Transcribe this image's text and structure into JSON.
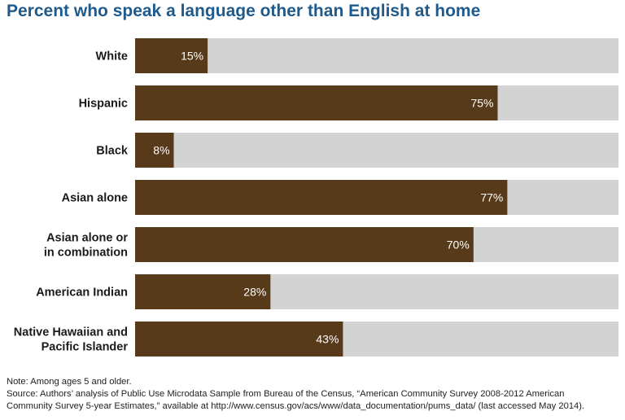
{
  "title": "Percent who speak a language other than English at home",
  "chart_data": {
    "type": "bar",
    "orientation": "horizontal",
    "title": "Percent who speak a language other than English at home",
    "categories": [
      [
        "White"
      ],
      [
        "Hispanic"
      ],
      [
        "Black"
      ],
      [
        "Asian alone"
      ],
      [
        "Asian alone or",
        "in combination"
      ],
      [
        "American Indian"
      ],
      [
        "Native Hawaiian and",
        "Pacific Islander"
      ]
    ],
    "values": [
      15,
      75,
      8,
      77,
      70,
      28,
      43
    ],
    "value_labels": [
      "15%",
      "75%",
      "8%",
      "77%",
      "70%",
      "28%",
      "43%"
    ],
    "xlim": [
      0,
      100
    ],
    "xlabel": "",
    "ylabel": "",
    "unit": "%",
    "colors": {
      "bar": "#573a19",
      "track": "#d3d3d3",
      "title": "#1f5a8c",
      "value_text": "#ffffff"
    }
  },
  "notes": {
    "note": "Note: Among ages 5 and older.",
    "source_line1": "Source: Authors’ analysis of Public Use Microdata Sample from Bureau of the Census, “American Community Survey 2008-2012 American",
    "source_line2": "Community Survey 5-year Estimates,” available at http://www.census.gov/acs/www/data_documentation/pums_data/ (last accessed May 2014)."
  }
}
